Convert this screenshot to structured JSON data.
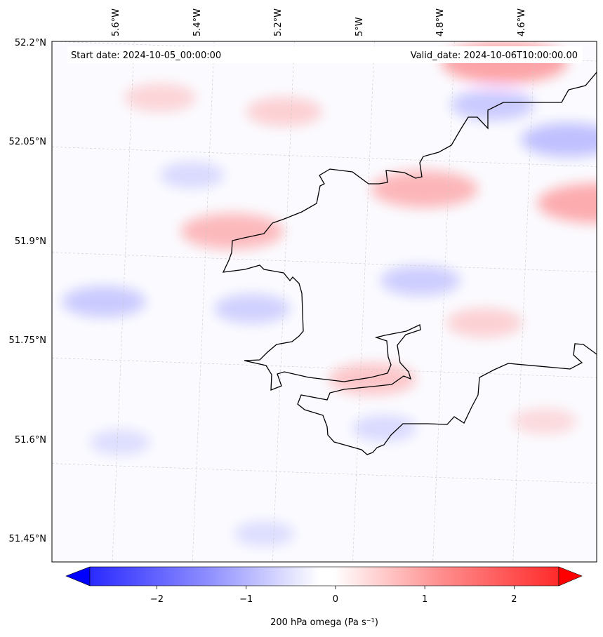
{
  "header": {
    "start_date": "Start date: 2024-10-05_00:00:00",
    "valid_date": "Valid_date: 2024-10-06T10:00:00.00"
  },
  "map": {
    "longitude_labels": [
      "5.6°W",
      "5.4°W",
      "5.2°W",
      "5°W",
      "4.8°W",
      "4.6°W"
    ],
    "latitude_labels": [
      "52.2°N",
      "52.05°N",
      "51.9°N",
      "51.75°N",
      "51.6°N",
      "51.45°N"
    ],
    "coastline_color": "#000000",
    "gridline_color": "#c8c8c8"
  },
  "colorbar": {
    "label": "200 hPa omega (Pa s⁻¹)",
    "ticks": [
      "−2",
      "−1",
      "0",
      "1",
      "2"
    ],
    "tick_values": [
      -2,
      -1,
      0,
      1,
      2
    ],
    "range": [
      -2.75,
      2.5
    ],
    "colormap": "bwr",
    "low_color": "#0000ff",
    "mid_color": "#ffffff",
    "high_color": "#ff0000",
    "extend": "both"
  },
  "chart_data": {
    "type": "heatmap",
    "variable": "200 hPa omega",
    "units": "Pa s-1",
    "positive_anomalies": [
      {
        "lon": -4.67,
        "lat": 52.17,
        "value": 1.0
      },
      {
        "lon": -4.44,
        "lat": 51.97,
        "value": 0.9
      },
      {
        "lon": -4.87,
        "lat": 51.99,
        "value": 0.75
      },
      {
        "lon": -5.35,
        "lat": 51.93,
        "value": 0.7
      },
      {
        "lon": -5.22,
        "lat": 52.1,
        "value": 0.35
      },
      {
        "lon": -5.53,
        "lat": 52.12,
        "value": 0.3
      },
      {
        "lon": -5.0,
        "lat": 51.72,
        "value": 0.5
      },
      {
        "lon": -4.72,
        "lat": 51.8,
        "value": 0.35
      },
      {
        "lon": -4.57,
        "lat": 51.66,
        "value": 0.2
      }
    ],
    "negative_anomalies": [
      {
        "lon": -4.51,
        "lat": 52.06,
        "value": -0.6
      },
      {
        "lon": -4.7,
        "lat": 52.11,
        "value": -0.45
      },
      {
        "lon": -5.67,
        "lat": 51.83,
        "value": -0.45
      },
      {
        "lon": -5.3,
        "lat": 51.82,
        "value": -0.35
      },
      {
        "lon": -4.88,
        "lat": 51.86,
        "value": -0.4
      },
      {
        "lon": -5.45,
        "lat": 52.01,
        "value": -0.2
      },
      {
        "lon": -4.97,
        "lat": 51.65,
        "value": -0.2
      },
      {
        "lon": -5.63,
        "lat": 51.63,
        "value": -0.15
      },
      {
        "lon": -5.27,
        "lat": 51.5,
        "value": -0.15
      }
    ]
  }
}
